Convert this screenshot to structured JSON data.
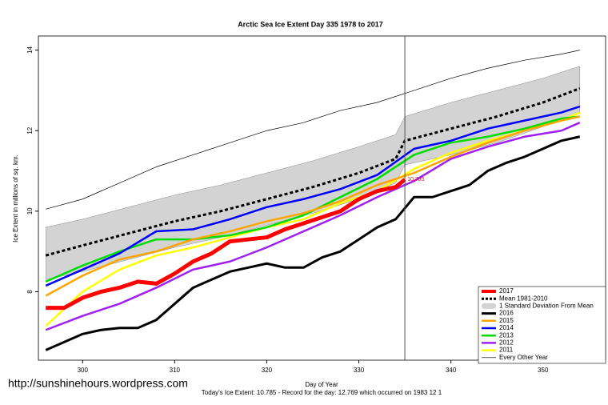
{
  "chart_data": {
    "type": "line",
    "title": "Arctic Sea Ice Extent Day 335 1978 to 2017",
    "x_label": "Day of Year",
    "y_label": "Ice Extent in millions of sq. km.",
    "footer": "Today's Ice Extent: 10.785  - Record for the day: 12.769 which occurred on 1983 12 1",
    "watermark": "http://sunshinehours.wordpress.com",
    "marker_day": 335,
    "xlim": [
      295.2,
      356.8
    ],
    "ylim": [
      6.3,
      14.35
    ],
    "xticks": [
      300,
      310,
      320,
      330,
      340,
      350
    ],
    "yticks": [
      8,
      10,
      12,
      14
    ],
    "legend": "bottom-right",
    "series": [
      {
        "name": "2017",
        "color": "#ff0000",
        "width": 5,
        "label_index": 20,
        "x": [
          296,
          298,
          300,
          302,
          304,
          306,
          308,
          310,
          312,
          314,
          316,
          318,
          320,
          322,
          324,
          326,
          328,
          330,
          332,
          334,
          335
        ],
        "values": [
          7.6,
          7.6,
          7.85,
          8.0,
          8.1,
          8.25,
          8.2,
          8.45,
          8.75,
          8.95,
          9.25,
          9.3,
          9.35,
          9.55,
          9.7,
          9.85,
          10.0,
          10.3,
          10.5,
          10.6,
          10.785
        ]
      },
      {
        "name": "Mean 1981-2010",
        "color": "#000000",
        "width": 3,
        "dashed": true,
        "x": [
          296,
          300,
          305,
          310,
          315,
          320,
          325,
          330,
          334,
          335,
          340,
          345,
          350,
          354
        ],
        "values": [
          8.9,
          9.15,
          9.45,
          9.75,
          10.0,
          10.3,
          10.6,
          10.95,
          11.3,
          11.75,
          12.05,
          12.35,
          12.7,
          13.05
        ]
      },
      {
        "name": "1 Standard Deviation From Mean",
        "color": "#d3d3d3",
        "band": true,
        "x": [
          296,
          300,
          305,
          310,
          315,
          320,
          325,
          330,
          334,
          335,
          340,
          345,
          350,
          354
        ],
        "upper": [
          9.6,
          9.8,
          10.1,
          10.4,
          10.65,
          10.95,
          11.25,
          11.6,
          11.9,
          12.35,
          12.7,
          13.0,
          13.3,
          13.6
        ],
        "lower": [
          8.3,
          8.5,
          8.8,
          9.1,
          9.35,
          9.65,
          9.95,
          10.3,
          10.7,
          11.15,
          11.4,
          11.7,
          12.1,
          12.45
        ]
      },
      {
        "name": "2016",
        "color": "#000000",
        "width": 3,
        "x": [
          296,
          298,
          300,
          302,
          304,
          306,
          308,
          310,
          312,
          314,
          316,
          318,
          320,
          322,
          324,
          326,
          328,
          330,
          332,
          334,
          336,
          338,
          340,
          342,
          344,
          346,
          348,
          350,
          352,
          354
        ],
        "values": [
          6.55,
          6.75,
          6.95,
          7.05,
          7.1,
          7.1,
          7.3,
          7.7,
          8.1,
          8.3,
          8.5,
          8.6,
          8.7,
          8.6,
          8.6,
          8.85,
          9.0,
          9.3,
          9.6,
          9.8,
          10.35,
          10.35,
          10.5,
          10.65,
          11.0,
          11.2,
          11.35,
          11.55,
          11.75,
          11.85
        ]
      },
      {
        "name": "2015",
        "color": "#ffa500",
        "width": 2.5,
        "x": [
          296,
          300,
          304,
          308,
          312,
          316,
          320,
          324,
          328,
          332,
          336,
          340,
          344,
          348,
          352,
          354
        ],
        "values": [
          7.9,
          8.4,
          8.8,
          9.0,
          9.3,
          9.5,
          9.75,
          9.95,
          10.25,
          10.65,
          10.95,
          11.35,
          11.7,
          12.0,
          12.25,
          12.35
        ]
      },
      {
        "name": "2014",
        "color": "#0000ff",
        "width": 2.5,
        "x": [
          296,
          300,
          304,
          308,
          312,
          316,
          320,
          324,
          328,
          332,
          336,
          340,
          344,
          348,
          352,
          354
        ],
        "values": [
          8.15,
          8.55,
          8.95,
          9.5,
          9.55,
          9.8,
          10.1,
          10.3,
          10.55,
          10.9,
          11.55,
          11.75,
          12.05,
          12.25,
          12.45,
          12.6
        ]
      },
      {
        "name": "2013",
        "color": "#00dd00",
        "width": 2.5,
        "x": [
          296,
          300,
          304,
          308,
          312,
          316,
          320,
          324,
          328,
          332,
          336,
          340,
          344,
          348,
          352,
          354
        ],
        "values": [
          8.25,
          8.65,
          9.0,
          9.3,
          9.3,
          9.4,
          9.6,
          9.9,
          10.35,
          10.8,
          11.4,
          11.7,
          11.85,
          12.05,
          12.3,
          12.35
        ]
      },
      {
        "name": "2012",
        "color": "#a020f0",
        "width": 2.5,
        "x": [
          296,
          300,
          304,
          308,
          312,
          316,
          320,
          324,
          328,
          332,
          336,
          340,
          344,
          348,
          352,
          354
        ],
        "values": [
          7.05,
          7.4,
          7.7,
          8.1,
          8.55,
          8.75,
          9.1,
          9.5,
          9.9,
          10.35,
          10.75,
          11.3,
          11.6,
          11.85,
          12.0,
          12.2
        ]
      },
      {
        "name": "2011",
        "color": "#ffff00",
        "width": 2.5,
        "x": [
          296,
          300,
          304,
          308,
          312,
          316,
          320,
          324,
          328,
          332,
          336,
          340,
          344,
          348,
          352,
          354
        ],
        "values": [
          7.15,
          8.0,
          8.55,
          8.9,
          9.1,
          9.35,
          9.6,
          9.8,
          10.2,
          10.5,
          11.05,
          11.45,
          11.75,
          12.0,
          12.25,
          12.45
        ]
      },
      {
        "name": "Every Other Year",
        "color": "#000000",
        "width": 0.7,
        "x": [
          296,
          300,
          304,
          308,
          312,
          316,
          320,
          324,
          328,
          332,
          336,
          340,
          344,
          348,
          352,
          354
        ],
        "values": [
          10.05,
          10.3,
          10.7,
          11.1,
          11.4,
          11.7,
          12.0,
          12.2,
          12.5,
          12.7,
          13.0,
          13.3,
          13.55,
          13.75,
          13.9,
          14.0
        ]
      }
    ]
  }
}
